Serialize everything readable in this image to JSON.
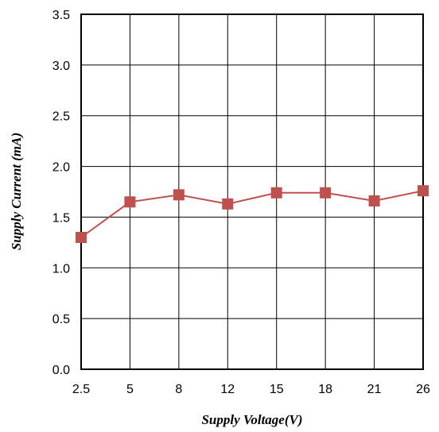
{
  "chart_data": {
    "type": "line",
    "title": "",
    "xlabel": "Supply Voltage(V)",
    "ylabel": "Supply Current (mA)",
    "x_axis_type": "category",
    "categories": [
      "2.5",
      "5",
      "8",
      "12",
      "15",
      "18",
      "21",
      "26"
    ],
    "series": [
      {
        "values": [
          1.3,
          1.65,
          1.72,
          1.63,
          1.74,
          1.74,
          1.66,
          1.76
        ],
        "color": "#C0504D",
        "marker": "square"
      }
    ],
    "ylim": [
      0,
      3.5
    ],
    "y_ticks": [
      "0.0",
      "0.5",
      "1.0",
      "1.5",
      "2.0",
      "2.5",
      "3.0",
      "3.5"
    ],
    "grid": true,
    "legend": "none"
  }
}
